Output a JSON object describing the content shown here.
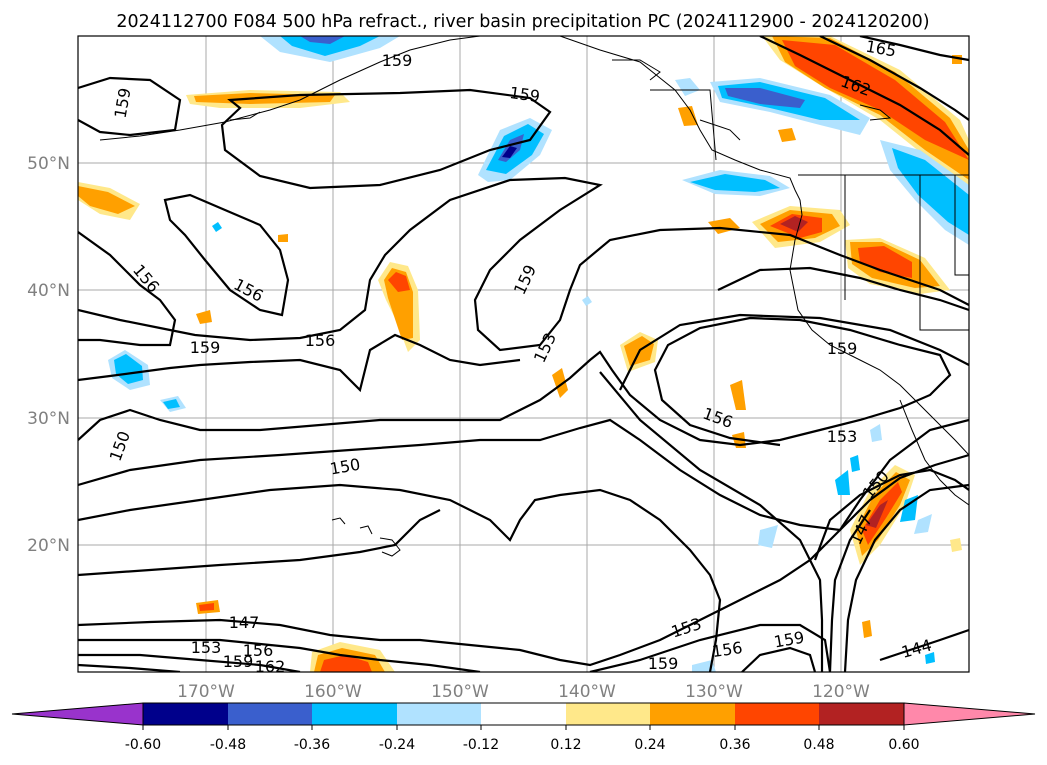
{
  "title": "2024112700 F084 500 hPa refract., river basin precipitation PC (2024112900 - 2024120200)",
  "map": {
    "lat_labels": [
      "50°N",
      "40°N",
      "30°N",
      "20°N"
    ],
    "lon_labels": [
      "170°W",
      "160°W",
      "150°W",
      "140°W",
      "130°W",
      "120°W"
    ],
    "label_color": "#808080",
    "contour_labels": [
      "159",
      "159",
      "159",
      "165",
      "162",
      "156",
      "156",
      "156",
      "159",
      "159",
      "153",
      "159",
      "156",
      "153",
      "150",
      "150",
      "150",
      "147",
      "147",
      "153",
      "156",
      "159",
      "162",
      "153",
      "156",
      "159",
      "159",
      "144"
    ]
  },
  "colorbar": {
    "ticks": [
      "-0.60",
      "-0.48",
      "-0.36",
      "-0.24",
      "-0.12",
      "0.12",
      "0.24",
      "0.36",
      "0.48",
      "0.60"
    ],
    "colors": [
      "#9933cc",
      "#00008b",
      "#3a5fcd",
      "#00bfff",
      "#b0e2ff",
      "#ffffff",
      "#ffe88a",
      "#ffa000",
      "#ff4500",
      "#b22222",
      "#ff88aa"
    ]
  }
}
